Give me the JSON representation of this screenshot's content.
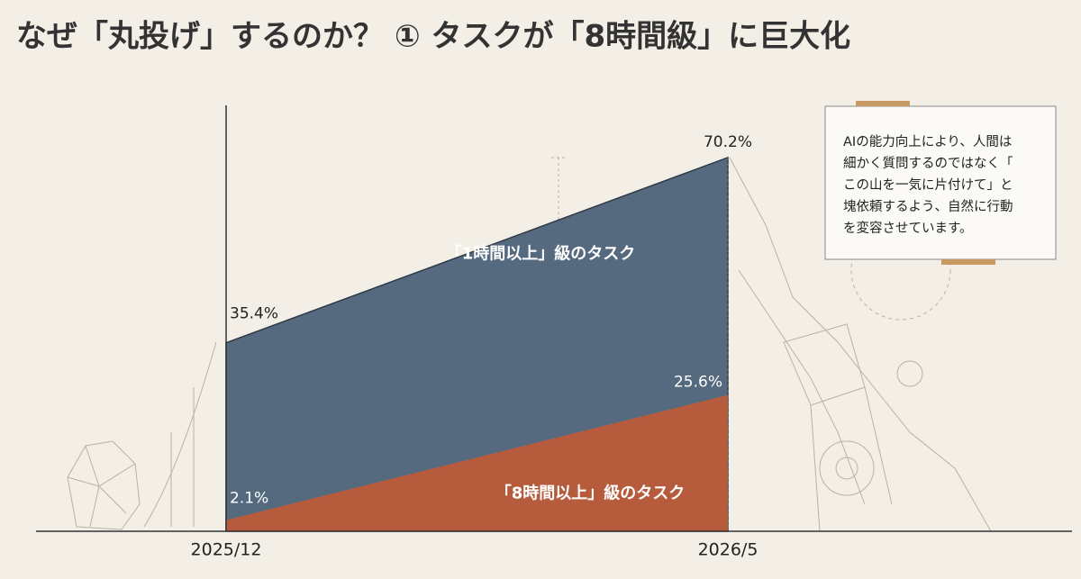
{
  "chart_data": {
    "type": "area",
    "title": "なぜ「丸投げ」するのか？ ① タスクが「8時間級」に巨大化",
    "categories": [
      "2025/12",
      "2026/5"
    ],
    "series": [
      {
        "name": "「1時間以上」級のタスク",
        "color": "#566a7f",
        "values": [
          35.4,
          70.2
        ],
        "value_labels": [
          "35.4%",
          "70.2%"
        ]
      },
      {
        "name": "「8時間以上」級のタスク",
        "color": "#b65c3d",
        "values": [
          2.1,
          25.6
        ],
        "value_labels": [
          "2.1%",
          "25.6%"
        ]
      }
    ],
    "ylim": [
      0,
      80
    ],
    "annotation": [
      "AIの能力向上により、人間は",
      "細かく質問するのではなく「",
      "この山を一気に片付けて」と",
      "塊依頼するよう、自然に行動",
      "を変容させています。"
    ]
  }
}
